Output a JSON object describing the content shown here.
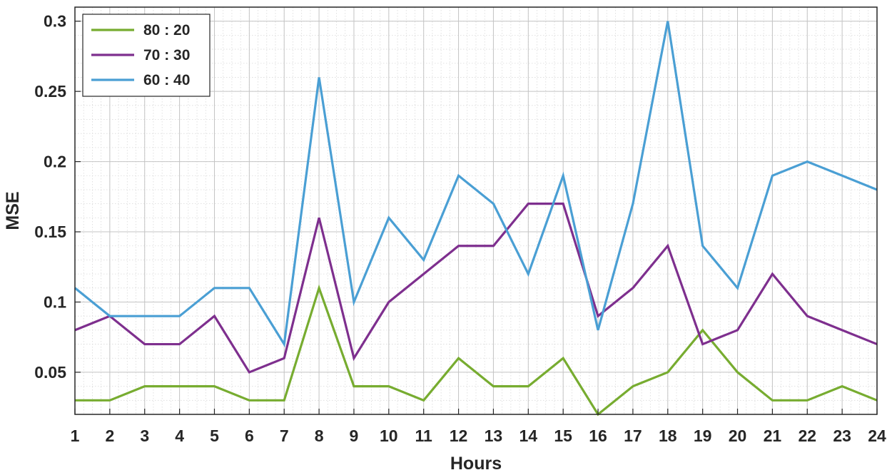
{
  "chart_data": {
    "type": "line",
    "title": "",
    "xlabel": "Hours",
    "ylabel": "MSE",
    "x": [
      1,
      2,
      3,
      4,
      5,
      6,
      7,
      8,
      9,
      10,
      11,
      12,
      13,
      14,
      15,
      16,
      17,
      18,
      19,
      20,
      21,
      22,
      23,
      24
    ],
    "xlim": [
      1,
      24
    ],
    "ylim": [
      0.02,
      0.31
    ],
    "xticks": [
      1,
      2,
      3,
      4,
      5,
      6,
      7,
      8,
      9,
      10,
      11,
      12,
      13,
      14,
      15,
      16,
      17,
      18,
      19,
      20,
      21,
      22,
      23,
      24
    ],
    "yticks": [
      0.05,
      0.1,
      0.15,
      0.2,
      0.25,
      0.3
    ],
    "ytick_labels": [
      "0.05",
      "0.1",
      "0.15",
      "0.2",
      "0.25",
      "0.3"
    ],
    "grid": "on (major and minor)",
    "legend_position": "top-left",
    "series": [
      {
        "name": "80 : 20",
        "color": "#77ac30",
        "values": [
          0.03,
          0.03,
          0.04,
          0.04,
          0.04,
          0.03,
          0.03,
          0.11,
          0.04,
          0.04,
          0.03,
          0.06,
          0.04,
          0.04,
          0.06,
          0.02,
          0.04,
          0.05,
          0.08,
          0.05,
          0.03,
          0.03,
          0.04,
          0.03
        ]
      },
      {
        "name": "70 : 30",
        "color": "#7e2f8e",
        "values": [
          0.08,
          0.09,
          0.07,
          0.07,
          0.09,
          0.05,
          0.06,
          0.16,
          0.06,
          0.1,
          0.12,
          0.14,
          0.14,
          0.17,
          0.17,
          0.09,
          0.11,
          0.14,
          0.07,
          0.08,
          0.12,
          0.09,
          0.08,
          0.07
        ]
      },
      {
        "name": "60 : 40",
        "color": "#4a9fd4",
        "values": [
          0.11,
          0.09,
          0.09,
          0.09,
          0.11,
          0.11,
          0.07,
          0.26,
          0.1,
          0.16,
          0.13,
          0.19,
          0.17,
          0.12,
          0.19,
          0.08,
          0.17,
          0.3,
          0.14,
          0.11,
          0.19,
          0.2,
          0.19,
          0.18
        ]
      }
    ]
  }
}
